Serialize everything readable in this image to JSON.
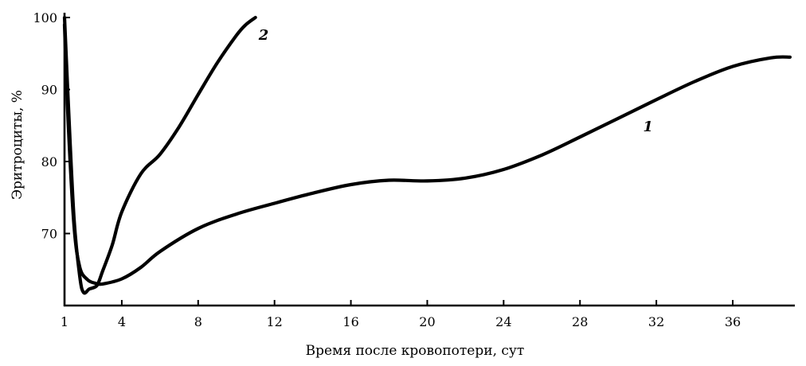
{
  "chart_data": {
    "type": "line",
    "title": "",
    "xlabel": "Время после кровопотери, сут",
    "ylabel": "Эритроциты, %",
    "xlim": [
      1,
      39.5
    ],
    "ylim": [
      60,
      100
    ],
    "x_ticks": [
      1,
      4,
      8,
      12,
      16,
      20,
      24,
      28,
      32,
      36
    ],
    "x_tick_labels": [
      "1",
      "4",
      "8",
      "12",
      "16",
      "20",
      "24",
      "28",
      "32",
      "36"
    ],
    "y_ticks": [
      70,
      80,
      90,
      100
    ],
    "y_tick_labels": [
      "70",
      "80",
      "90",
      "100"
    ],
    "grid": false,
    "legend": "inline labels at line ends",
    "series": [
      {
        "name": "1",
        "x": [
          1,
          1.2,
          1.5,
          1.8,
          2.2,
          2.6,
          3,
          4,
          5,
          6,
          8,
          10,
          12,
          14,
          16,
          18,
          20,
          22,
          24,
          26,
          28,
          30,
          32,
          34,
          36,
          38,
          39
        ],
        "values": [
          99,
          85,
          71,
          65.3,
          63.6,
          63.1,
          63,
          63.7,
          65.3,
          67.5,
          70.7,
          72.7,
          74.2,
          75.6,
          76.8,
          77.4,
          77.3,
          77.7,
          78.9,
          80.9,
          83.4,
          86,
          88.6,
          91.1,
          93.2,
          94.4,
          94.5
        ]
      },
      {
        "name": "2",
        "x": [
          1,
          1.2,
          1.5,
          1.8,
          2,
          2.3,
          2.7,
          3,
          3.5,
          4,
          5,
          6,
          7,
          8,
          9,
          10,
          10.5,
          11
        ],
        "values": [
          100,
          88,
          72,
          64,
          61.8,
          62.3,
          62.8,
          64.8,
          68.4,
          73,
          78.3,
          81,
          84.8,
          89.3,
          93.7,
          97.5,
          99,
          100
        ]
      }
    ]
  }
}
